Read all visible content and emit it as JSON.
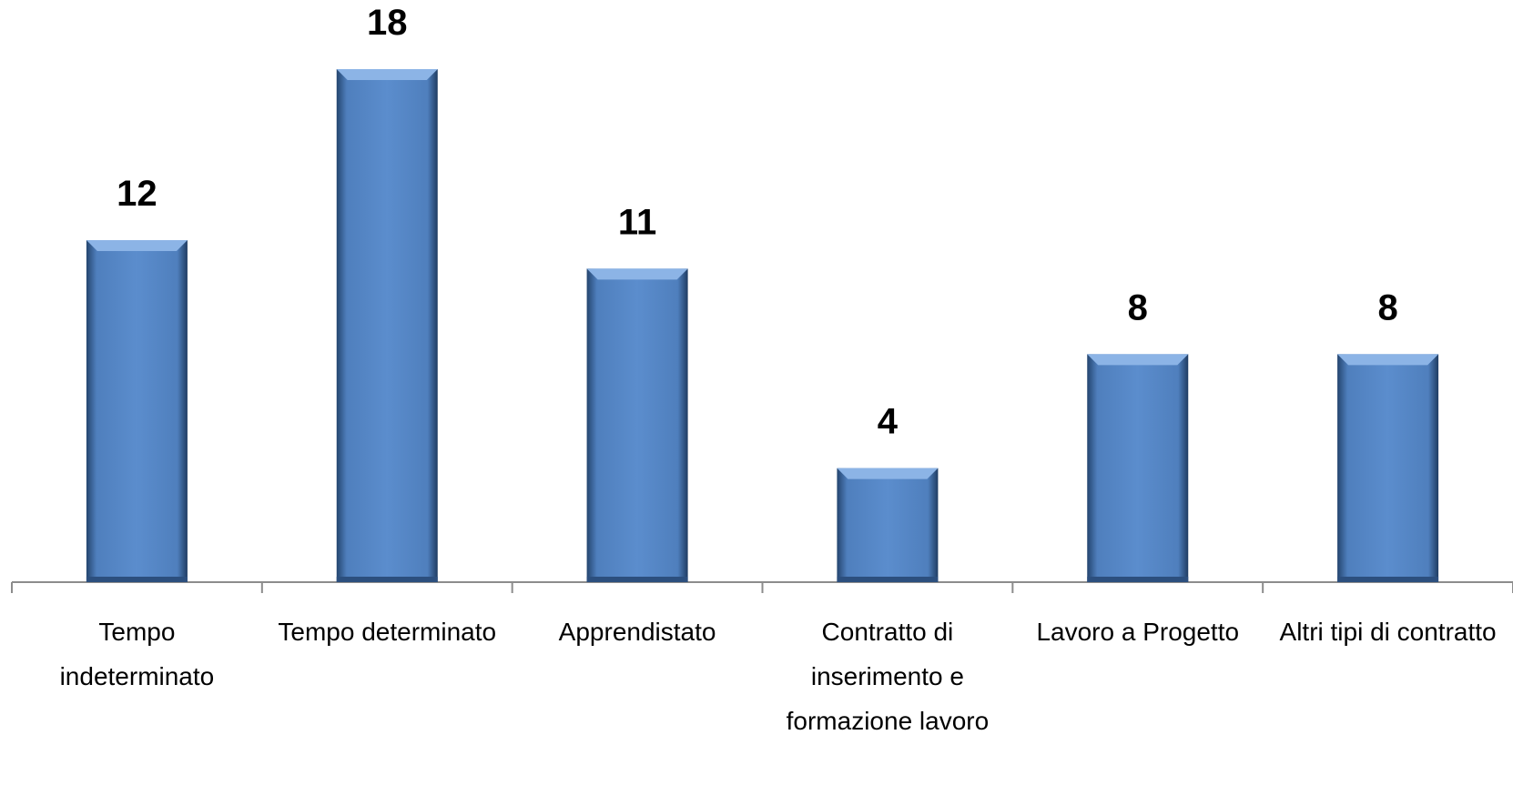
{
  "chart_data": {
    "type": "bar",
    "categories": [
      "Tempo indeterminato",
      "Tempo determinato",
      "Apprendistato",
      "Contratto di inserimento e formazione lavoro",
      "Lavoro a Progetto",
      "Altri tipi di contratto"
    ],
    "values": [
      12,
      18,
      11,
      4,
      8,
      8
    ],
    "color": "#5a8bcb"
  }
}
